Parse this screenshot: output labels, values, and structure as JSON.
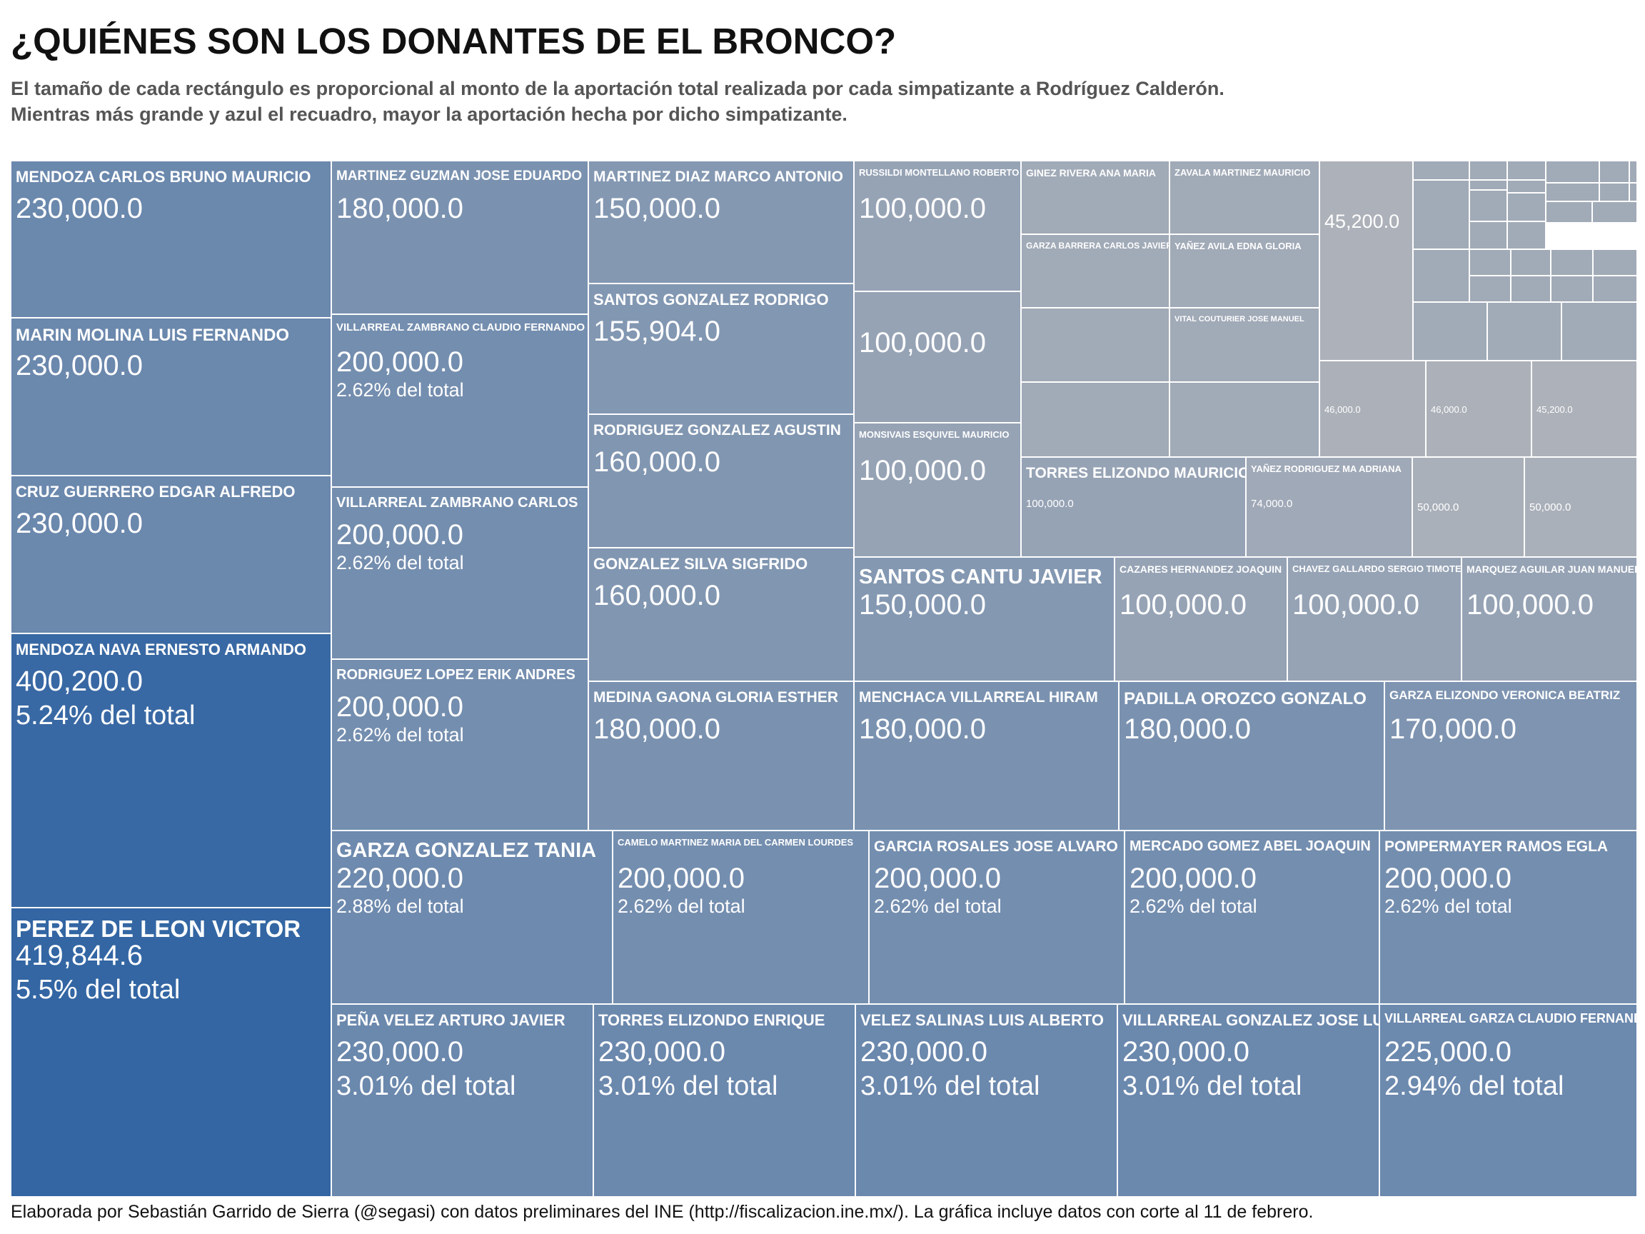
{
  "title": "¿QUIÉNES SON LOS DONANTES DE EL BRONCO?",
  "subtitle": [
    "El tamaño de cada rectángulo es proporcional al monto de la aportación total realizada por cada simpatizante a Rodríguez Calderón.",
    "Mientras más grande y azul el recuadro, mayor la aportación hecha por dicho simpatizante."
  ],
  "source": "Elaborada por Sebastián Garrido de Sierra (@segasi) con datos preliminares del INE (http://fiscalizacion.ine.mx/). La gráfica incluye datos con corte al 11 de febrero.",
  "colors": {
    "background": "#ffffff",
    "min_color": "#b0b3ba",
    "max_color": "#3366a3",
    "label": "#ffffff"
  },
  "chart_data": {
    "type": "treemap",
    "title": "¿QUIÉNES SON LOS DONANTES DE EL BRONCO?",
    "value_unit": "",
    "items": [
      {
        "name": "PEREZ DE LEON  VICTOR",
        "value": "419,844.6",
        "amount": 419844.6,
        "pct": "5.5% del total"
      },
      {
        "name": "MENDOZA NAVA  ERNESTO ARMANDO",
        "value": "400,200.0",
        "amount": 400200.0,
        "pct": "5.24% del total"
      },
      {
        "name": "CRUZ GUERRERO  EDGAR ALFREDO",
        "value": "230,000.0",
        "amount": 230000.0,
        "pct": ""
      },
      {
        "name": "MARIN MOLINA  LUIS FERNANDO",
        "value": "230,000.0",
        "amount": 230000.0,
        "pct": ""
      },
      {
        "name": "MENDOZA CARLOS  BRUNO MAURICIO",
        "value": "230,000.0",
        "amount": 230000.0,
        "pct": ""
      },
      {
        "name": "PEÑA VELEZ  ARTURO JAVIER",
        "value": "230,000.0",
        "amount": 230000.0,
        "pct": "3.01% del total"
      },
      {
        "name": "TORRES ELIZONDO  ENRIQUE",
        "value": "230,000.0",
        "amount": 230000.0,
        "pct": "3.01% del total"
      },
      {
        "name": "VELEZ SALINAS  LUIS ALBERTO",
        "value": "230,000.0",
        "amount": 230000.0,
        "pct": "3.01% del total"
      },
      {
        "name": "VILLARREAL GONZALEZ  JOSE LUIS",
        "value": "230,000.0",
        "amount": 230000.0,
        "pct": "3.01% del total"
      },
      {
        "name": "VILLARREAL GARZA  CLAUDIO FERNANDO",
        "value": "225,000.0",
        "amount": 225000.0,
        "pct": "2.94% del total"
      },
      {
        "name": "GARZA GONZALEZ  TANIA",
        "value": "220,000.0",
        "amount": 220000.0,
        "pct": "2.88% del total"
      },
      {
        "name": "CAMELO MARTINEZ  MARIA DEL CARMEN LOURDES",
        "value": "200,000.0",
        "amount": 200000.0,
        "pct": "2.62% del total"
      },
      {
        "name": "GARCIA ROSALES  JOSE ALVARO",
        "value": "200,000.0",
        "amount": 200000.0,
        "pct": "2.62% del total"
      },
      {
        "name": "MERCADO GOMEZ  ABEL JOAQUIN",
        "value": "200,000.0",
        "amount": 200000.0,
        "pct": "2.62% del total"
      },
      {
        "name": "POMPERMAYER RAMOS  EGLA",
        "value": "200,000.0",
        "amount": 200000.0,
        "pct": "2.62% del total"
      },
      {
        "name": "VILLARREAL ZAMBRANO  CLAUDIO FERNANDO",
        "value": "200,000.0",
        "amount": 200000.0,
        "pct": "2.62% del total"
      },
      {
        "name": "VILLARREAL ZAMBRANO  CARLOS",
        "value": "200,000.0",
        "amount": 200000.0,
        "pct": "2.62% del total"
      },
      {
        "name": "RODRIGUEZ LOPEZ  ERIK ANDRES",
        "value": "200,000.0",
        "amount": 200000.0,
        "pct": "2.62% del total"
      },
      {
        "name": "MARTINEZ GUZMAN  JOSE EDUARDO",
        "value": "180,000.0",
        "amount": 180000.0,
        "pct": ""
      },
      {
        "name": "MEDINA GAONA  GLORIA ESTHER",
        "value": "180,000.0",
        "amount": 180000.0,
        "pct": ""
      },
      {
        "name": "MENCHACA VILLARREAL  HIRAM",
        "value": "180,000.0",
        "amount": 180000.0,
        "pct": ""
      },
      {
        "name": "PADILLA OROZCO  GONZALO",
        "value": "180,000.0",
        "amount": 180000.0,
        "pct": ""
      },
      {
        "name": "GARZA ELIZONDO  VERONICA BEATRIZ",
        "value": "170,000.0",
        "amount": 170000.0,
        "pct": ""
      },
      {
        "name": "RODRIGUEZ GONZALEZ  AGUSTIN",
        "value": "160,000.0",
        "amount": 160000.0,
        "pct": ""
      },
      {
        "name": "GONZALEZ SILVA  SIGFRIDO",
        "value": "160,000.0",
        "amount": 160000.0,
        "pct": ""
      },
      {
        "name": "SANTOS GONZALEZ  RODRIGO",
        "value": "155,904.0",
        "amount": 155904.0,
        "pct": ""
      },
      {
        "name": "MARTINEZ DIAZ  MARCO ANTONIO",
        "value": "150,000.0",
        "amount": 150000.0,
        "pct": ""
      },
      {
        "name": "SANTOS CANTU  JAVIER",
        "value": "150,000.0",
        "amount": 150000.0,
        "pct": ""
      },
      {
        "name": "RUSSILDI MONTELLANO  ROBERTO",
        "value": "100,000.0",
        "amount": 100000.0,
        "pct": ""
      },
      {
        "name": "",
        "value": "100,000.0",
        "amount": 100000.0,
        "pct": ""
      },
      {
        "name": "MONSIVAIS ESQUIVEL  MAURICIO",
        "value": "100,000.0",
        "amount": 100000.0,
        "pct": ""
      },
      {
        "name": "CAZARES HERNANDEZ  JOAQUIN",
        "value": "100,000.0",
        "amount": 100000.0,
        "pct": ""
      },
      {
        "name": "CHAVEZ GALLARDO  SERGIO TIMOTEO",
        "value": "100,000.0",
        "amount": 100000.0,
        "pct": ""
      },
      {
        "name": "MARQUEZ AGUILAR  JUAN MANUEL",
        "value": "100,000.0",
        "amount": 100000.0,
        "pct": ""
      },
      {
        "name": "TORRES ELIZONDO  MAURICIO",
        "value": "100,000.0",
        "amount": 100000.0,
        "pct": ""
      },
      {
        "name": "YAÑEZ RODRIGUEZ  MA ADRIANA",
        "value": "74,000.0",
        "amount": 74000.0,
        "pct": ""
      },
      {
        "name": "",
        "value": "50,000.0",
        "amount": 50000.0,
        "pct": ""
      },
      {
        "name": "",
        "value": "50,000.0",
        "amount": 50000.0,
        "pct": ""
      },
      {
        "name": "",
        "value": "46,000.0",
        "amount": 46000.0,
        "pct": ""
      },
      {
        "name": "",
        "value": "46,000.0",
        "amount": 46000.0,
        "pct": ""
      },
      {
        "name": "",
        "value": "45,200.0",
        "amount": 45200.0,
        "pct": ""
      },
      {
        "name": "",
        "value": "45,200.0",
        "amount": 45200.0,
        "pct": ""
      },
      {
        "name": "GINEZ RIVERA  ANA MARIA",
        "value": "",
        "amount": null,
        "pct": ""
      },
      {
        "name": "ZAVALA MARTINEZ  MAURICIO",
        "value": "",
        "amount": null,
        "pct": ""
      },
      {
        "name": "GARZA BARRERA  CARLOS JAVIER",
        "value": "",
        "amount": null,
        "pct": ""
      },
      {
        "name": "YAÑEZ AVILA  EDNA GLORIA",
        "value": "",
        "amount": null,
        "pct": ""
      },
      {
        "name": "VITAL COUTURIER  JOSE MANUEL",
        "value": "",
        "amount": null,
        "pct": ""
      }
    ],
    "unlabeled_cells": 33
  }
}
